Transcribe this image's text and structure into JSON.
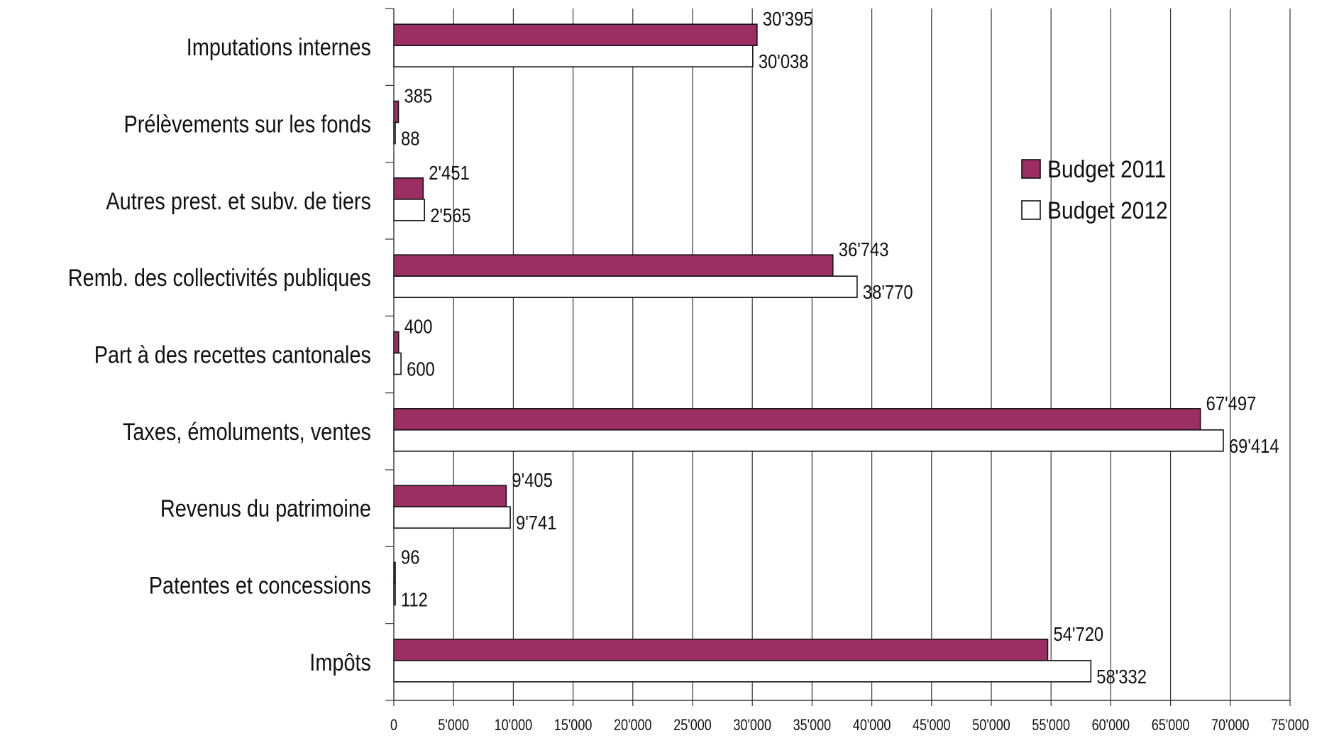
{
  "chart_data": {
    "type": "bar",
    "orientation": "horizontal",
    "categories": [
      "Imputations internes",
      "Prélèvements sur les fonds",
      "Autres prest. et subv. de tiers",
      "Remb. des collectivités publiques",
      "Part à des recettes cantonales",
      "Taxes, émoluments, ventes",
      "Revenus du patrimoine",
      "Patentes et concessions",
      "Impôts"
    ],
    "series": [
      {
        "name": "Budget 2011",
        "color": "#9b2f63",
        "values": [
          30395,
          385,
          2451,
          36743,
          400,
          67497,
          9405,
          96,
          54720
        ],
        "labels": [
          "30'395",
          "385",
          "2'451",
          "36'743",
          "400",
          "67'497",
          "9'405",
          "96",
          "54'720"
        ]
      },
      {
        "name": "Budget 2012",
        "color": "#ffffff",
        "values": [
          30038,
          88,
          2565,
          38770,
          600,
          69414,
          9741,
          112,
          58332
        ],
        "labels": [
          "30'038",
          "88",
          "2'565",
          "38'770",
          "600",
          "69'414",
          "9'741",
          "112",
          "58'332"
        ]
      }
    ],
    "xlim": [
      0,
      75000
    ],
    "xticks": [
      0,
      5000,
      10000,
      15000,
      20000,
      25000,
      30000,
      35000,
      40000,
      45000,
      50000,
      55000,
      60000,
      65000,
      70000,
      75000
    ],
    "xtick_labels": [
      "0",
      "5'000",
      "10'000",
      "15'000",
      "20'000",
      "25'000",
      "30'000",
      "35'000",
      "40'000",
      "45'000",
      "50'000",
      "55'000",
      "60'000",
      "65'000",
      "70'000",
      "75'000"
    ],
    "grid": true,
    "legend_position": "right",
    "title": "",
    "xlabel": "",
    "ylabel": ""
  }
}
